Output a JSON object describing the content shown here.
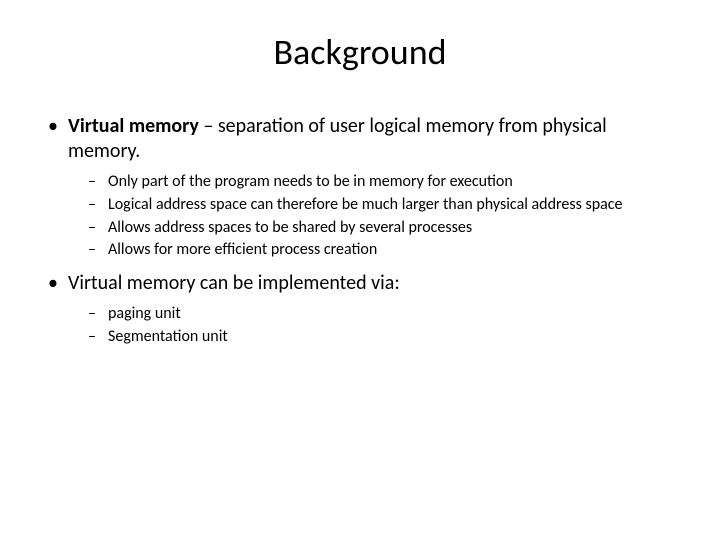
{
  "title": "Background",
  "colors": {
    "background": "#ffffff",
    "text": "#000000"
  },
  "typography": {
    "title_fontsize": 36,
    "level1_fontsize": 20,
    "level2_fontsize": 16,
    "font_family": "Calibri, Arial, sans-serif"
  },
  "bullets": [
    {
      "bold_prefix": "Virtual memory",
      "rest": " – separation of user logical memory from physical memory.",
      "sub": [
        "Only part of the program needs to be in memory for execution",
        "Logical address space can therefore be much larger than physical address space",
        "Allows address spaces to be shared by several processes",
        "Allows for more efficient process creation"
      ]
    },
    {
      "bold_prefix": "",
      "rest": "Virtual memory can be implemented via:",
      "sub": [
        "paging unit",
        "Segmentation unit"
      ]
    }
  ]
}
